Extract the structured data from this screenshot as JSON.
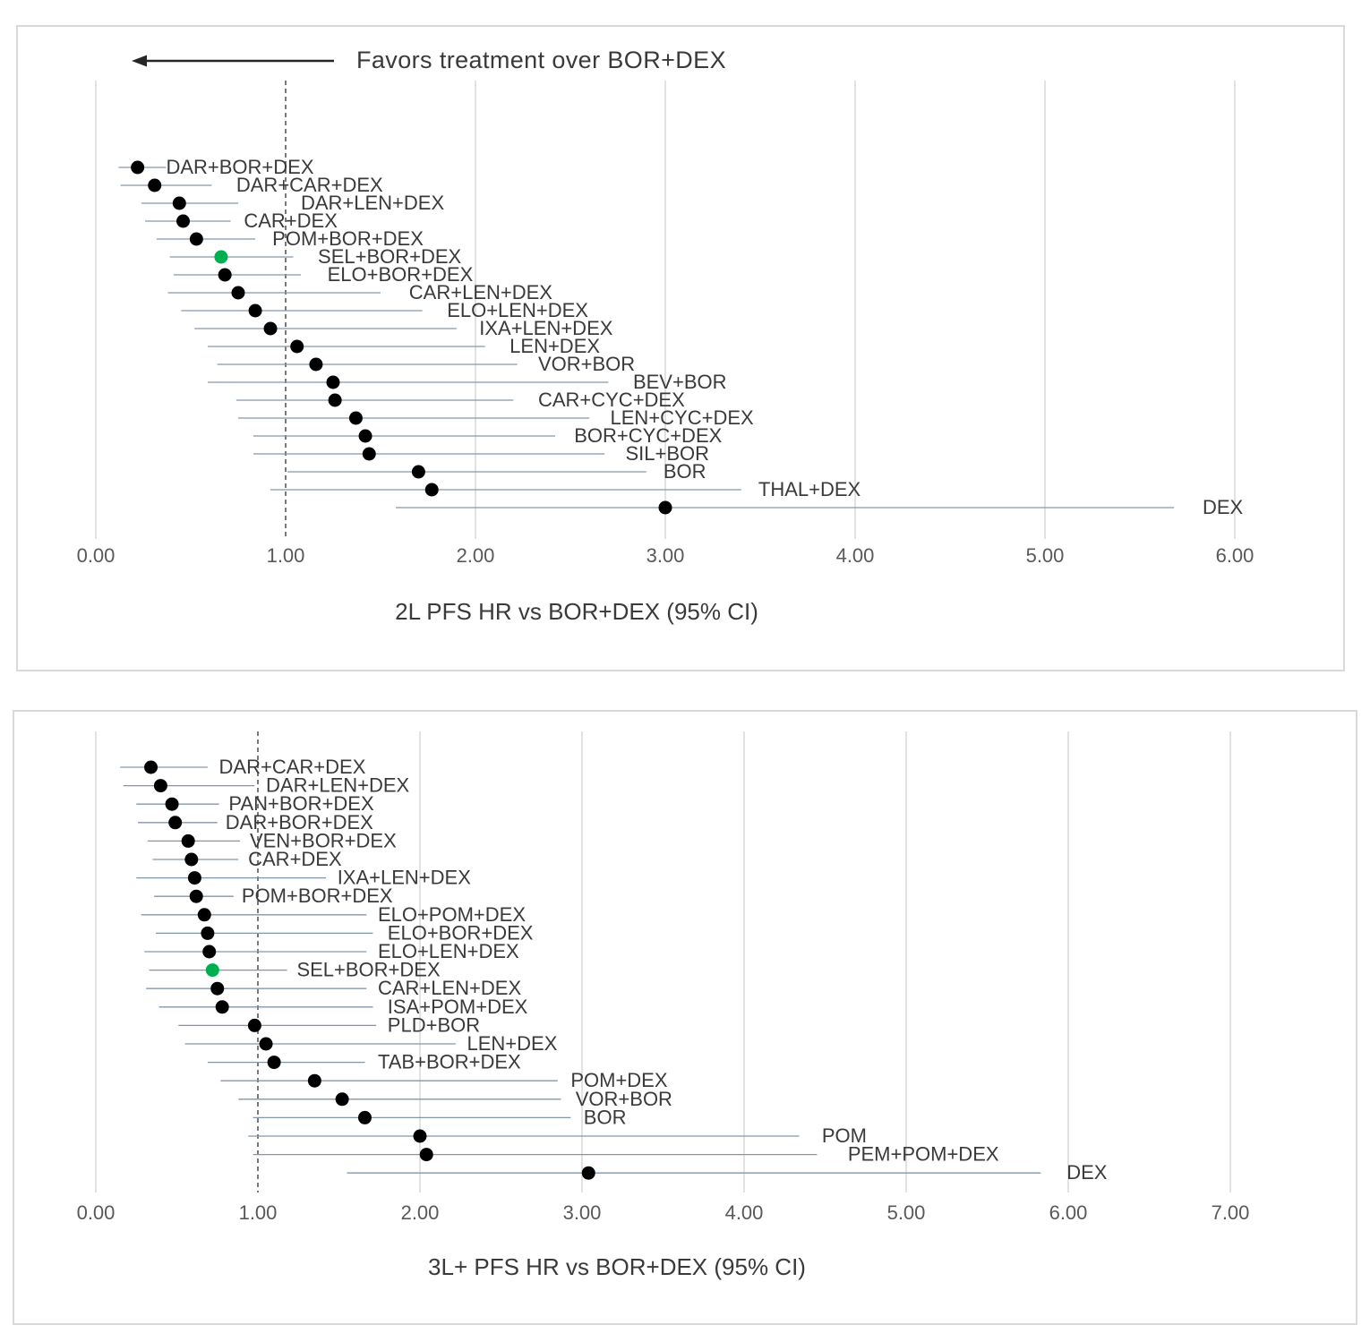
{
  "colors": {
    "point": "#000000",
    "highlight_point": "#00b050",
    "ci_line": "#8496ab",
    "gridline": "#d9d9d9",
    "ref_line": "#404040",
    "label_text": "#3a3a3a",
    "tick_text": "#595959",
    "panel_border": "#d9d9d9"
  },
  "chart_data": [
    {
      "type": "scatter",
      "subtype": "forest-plot",
      "annotation": "Favors treatment over BOR+DEX",
      "xlabel": "2L PFS HR vs BOR+DEX (95% CI)",
      "x_ticks": [
        "0.00",
        "1.00",
        "2.00",
        "3.00",
        "4.00",
        "5.00",
        "6.00"
      ],
      "xlim": [
        0,
        6
      ],
      "ref_line_x": 1,
      "grid": true,
      "legend": "none",
      "rows": [
        {
          "label": "DAR+BOR+DEX",
          "hr": 0.22,
          "lo": 0.12,
          "hi": 0.37,
          "label_x": 0.37,
          "highlight": false
        },
        {
          "label": "DAR+CAR+DEX",
          "hr": 0.31,
          "lo": 0.13,
          "hi": 0.61,
          "label_x": 0.74,
          "highlight": false
        },
        {
          "label": "DAR+LEN+DEX",
          "hr": 0.44,
          "lo": 0.24,
          "hi": 0.75,
          "label_x": 1.08,
          "highlight": false
        },
        {
          "label": "CAR+DEX",
          "hr": 0.46,
          "lo": 0.26,
          "hi": 0.71,
          "label_x": 0.78,
          "highlight": false
        },
        {
          "label": "POM+BOR+DEX",
          "hr": 0.53,
          "lo": 0.32,
          "hi": 0.84,
          "label_x": 0.93,
          "highlight": false
        },
        {
          "label": "SEL+BOR+DEX",
          "hr": 0.66,
          "lo": 0.39,
          "hi": 1.04,
          "label_x": 1.17,
          "highlight": true
        },
        {
          "label": "ELO+BOR+DEX",
          "hr": 0.68,
          "lo": 0.41,
          "hi": 1.08,
          "label_x": 1.22,
          "highlight": false
        },
        {
          "label": "CAR+LEN+DEX",
          "hr": 0.75,
          "lo": 0.38,
          "hi": 1.5,
          "label_x": 1.65,
          "highlight": false
        },
        {
          "label": "ELO+LEN+DEX",
          "hr": 0.84,
          "lo": 0.45,
          "hi": 1.72,
          "label_x": 1.85,
          "highlight": false
        },
        {
          "label": "IXA+LEN+DEX",
          "hr": 0.92,
          "lo": 0.52,
          "hi": 1.9,
          "label_x": 2.02,
          "highlight": false
        },
        {
          "label": "LEN+DEX",
          "hr": 1.06,
          "lo": 0.59,
          "hi": 2.05,
          "label_x": 2.18,
          "highlight": false
        },
        {
          "label": "VOR+BOR",
          "hr": 1.16,
          "lo": 0.64,
          "hi": 2.22,
          "label_x": 2.33,
          "highlight": false
        },
        {
          "label": "BEV+BOR",
          "hr": 1.25,
          "lo": 0.59,
          "hi": 2.7,
          "label_x": 2.83,
          "highlight": false
        },
        {
          "label": "CAR+CYC+DEX",
          "hr": 1.26,
          "lo": 0.74,
          "hi": 2.2,
          "label_x": 2.33,
          "highlight": false
        },
        {
          "label": "LEN+CYC+DEX",
          "hr": 1.37,
          "lo": 0.75,
          "hi": 2.6,
          "label_x": 2.71,
          "highlight": false
        },
        {
          "label": "BOR+CYC+DEX",
          "hr": 1.42,
          "lo": 0.83,
          "hi": 2.42,
          "label_x": 2.52,
          "highlight": false
        },
        {
          "label": "SIL+BOR",
          "hr": 1.44,
          "lo": 0.83,
          "hi": 2.68,
          "label_x": 2.79,
          "highlight": false
        },
        {
          "label": "BOR",
          "hr": 1.7,
          "lo": 1.01,
          "hi": 2.9,
          "label_x": 2.99,
          "highlight": false
        },
        {
          "label": "THAL+DEX",
          "hr": 1.77,
          "lo": 0.92,
          "hi": 3.4,
          "label_x": 3.49,
          "highlight": false
        },
        {
          "label": "DEX",
          "hr": 3.0,
          "lo": 1.58,
          "hi": 5.68,
          "label_x": 5.83,
          "highlight": false
        }
      ]
    },
    {
      "type": "scatter",
      "subtype": "forest-plot",
      "xlabel": "3L+ PFS HR vs BOR+DEX (95% CI)",
      "x_ticks": [
        "0.00",
        "1.00",
        "2.00",
        "3.00",
        "4.00",
        "5.00",
        "6.00",
        "7.00"
      ],
      "xlim": [
        0,
        7
      ],
      "ref_line_x": 1,
      "grid": true,
      "legend": "none",
      "rows": [
        {
          "label": "DAR+CAR+DEX",
          "hr": 0.34,
          "lo": 0.15,
          "hi": 0.69,
          "label_x": 0.76,
          "highlight": false
        },
        {
          "label": "DAR+LEN+DEX",
          "hr": 0.4,
          "lo": 0.17,
          "hi": 0.98,
          "label_x": 1.05,
          "highlight": false
        },
        {
          "label": "PAN+BOR+DEX",
          "hr": 0.47,
          "lo": 0.25,
          "hi": 0.76,
          "label_x": 0.82,
          "highlight": false
        },
        {
          "label": "DAR+BOR+DEX",
          "hr": 0.49,
          "lo": 0.26,
          "hi": 0.75,
          "label_x": 0.8,
          "highlight": false
        },
        {
          "label": "VEN+BOR+DEX",
          "hr": 0.57,
          "lo": 0.32,
          "hi": 0.89,
          "label_x": 0.95,
          "highlight": false
        },
        {
          "label": "CAR+DEX",
          "hr": 0.59,
          "lo": 0.35,
          "hi": 0.88,
          "label_x": 0.94,
          "highlight": false
        },
        {
          "label": "IXA+LEN+DEX",
          "hr": 0.61,
          "lo": 0.25,
          "hi": 1.42,
          "label_x": 1.49,
          "highlight": false
        },
        {
          "label": "POM+BOR+DEX",
          "hr": 0.62,
          "lo": 0.36,
          "hi": 0.85,
          "label_x": 0.9,
          "highlight": false
        },
        {
          "label": "ELO+POM+DEX",
          "hr": 0.67,
          "lo": 0.28,
          "hi": 1.67,
          "label_x": 1.74,
          "highlight": false
        },
        {
          "label": "ELO+BOR+DEX",
          "hr": 0.69,
          "lo": 0.37,
          "hi": 1.71,
          "label_x": 1.8,
          "highlight": false
        },
        {
          "label": "ELO+LEN+DEX",
          "hr": 0.7,
          "lo": 0.3,
          "hi": 1.67,
          "label_x": 1.74,
          "highlight": false
        },
        {
          "label": "SEL+BOR+DEX",
          "hr": 0.72,
          "lo": 0.33,
          "hi": 1.18,
          "label_x": 1.24,
          "highlight": true
        },
        {
          "label": "CAR+LEN+DEX",
          "hr": 0.75,
          "lo": 0.31,
          "hi": 1.67,
          "label_x": 1.74,
          "highlight": false
        },
        {
          "label": "ISA+POM+DEX",
          "hr": 0.78,
          "lo": 0.39,
          "hi": 1.71,
          "label_x": 1.8,
          "highlight": false
        },
        {
          "label": "PLD+BOR",
          "hr": 0.98,
          "lo": 0.51,
          "hi": 1.73,
          "label_x": 1.8,
          "highlight": false
        },
        {
          "label": "LEN+DEX",
          "hr": 1.05,
          "lo": 0.55,
          "hi": 2.22,
          "label_x": 2.29,
          "highlight": false
        },
        {
          "label": "TAB+BOR+DEX",
          "hr": 1.1,
          "lo": 0.69,
          "hi": 1.66,
          "label_x": 1.74,
          "highlight": false
        },
        {
          "label": "POM+DEX",
          "hr": 1.35,
          "lo": 0.77,
          "hi": 2.85,
          "label_x": 2.93,
          "highlight": false
        },
        {
          "label": "VOR+BOR",
          "hr": 1.52,
          "lo": 0.88,
          "hi": 2.87,
          "label_x": 2.96,
          "highlight": false
        },
        {
          "label": "BOR",
          "hr": 1.66,
          "lo": 0.97,
          "hi": 2.93,
          "label_x": 3.01,
          "highlight": false
        },
        {
          "label": "POM",
          "hr": 2.0,
          "lo": 0.94,
          "hi": 4.34,
          "label_x": 4.48,
          "highlight": false
        },
        {
          "label": "PEM+POM+DEX",
          "hr": 2.04,
          "lo": 0.97,
          "hi": 4.45,
          "label_x": 4.64,
          "highlight": false
        },
        {
          "label": "DEX",
          "hr": 3.04,
          "lo": 1.55,
          "hi": 5.83,
          "label_x": 5.99,
          "highlight": false
        }
      ]
    }
  ]
}
